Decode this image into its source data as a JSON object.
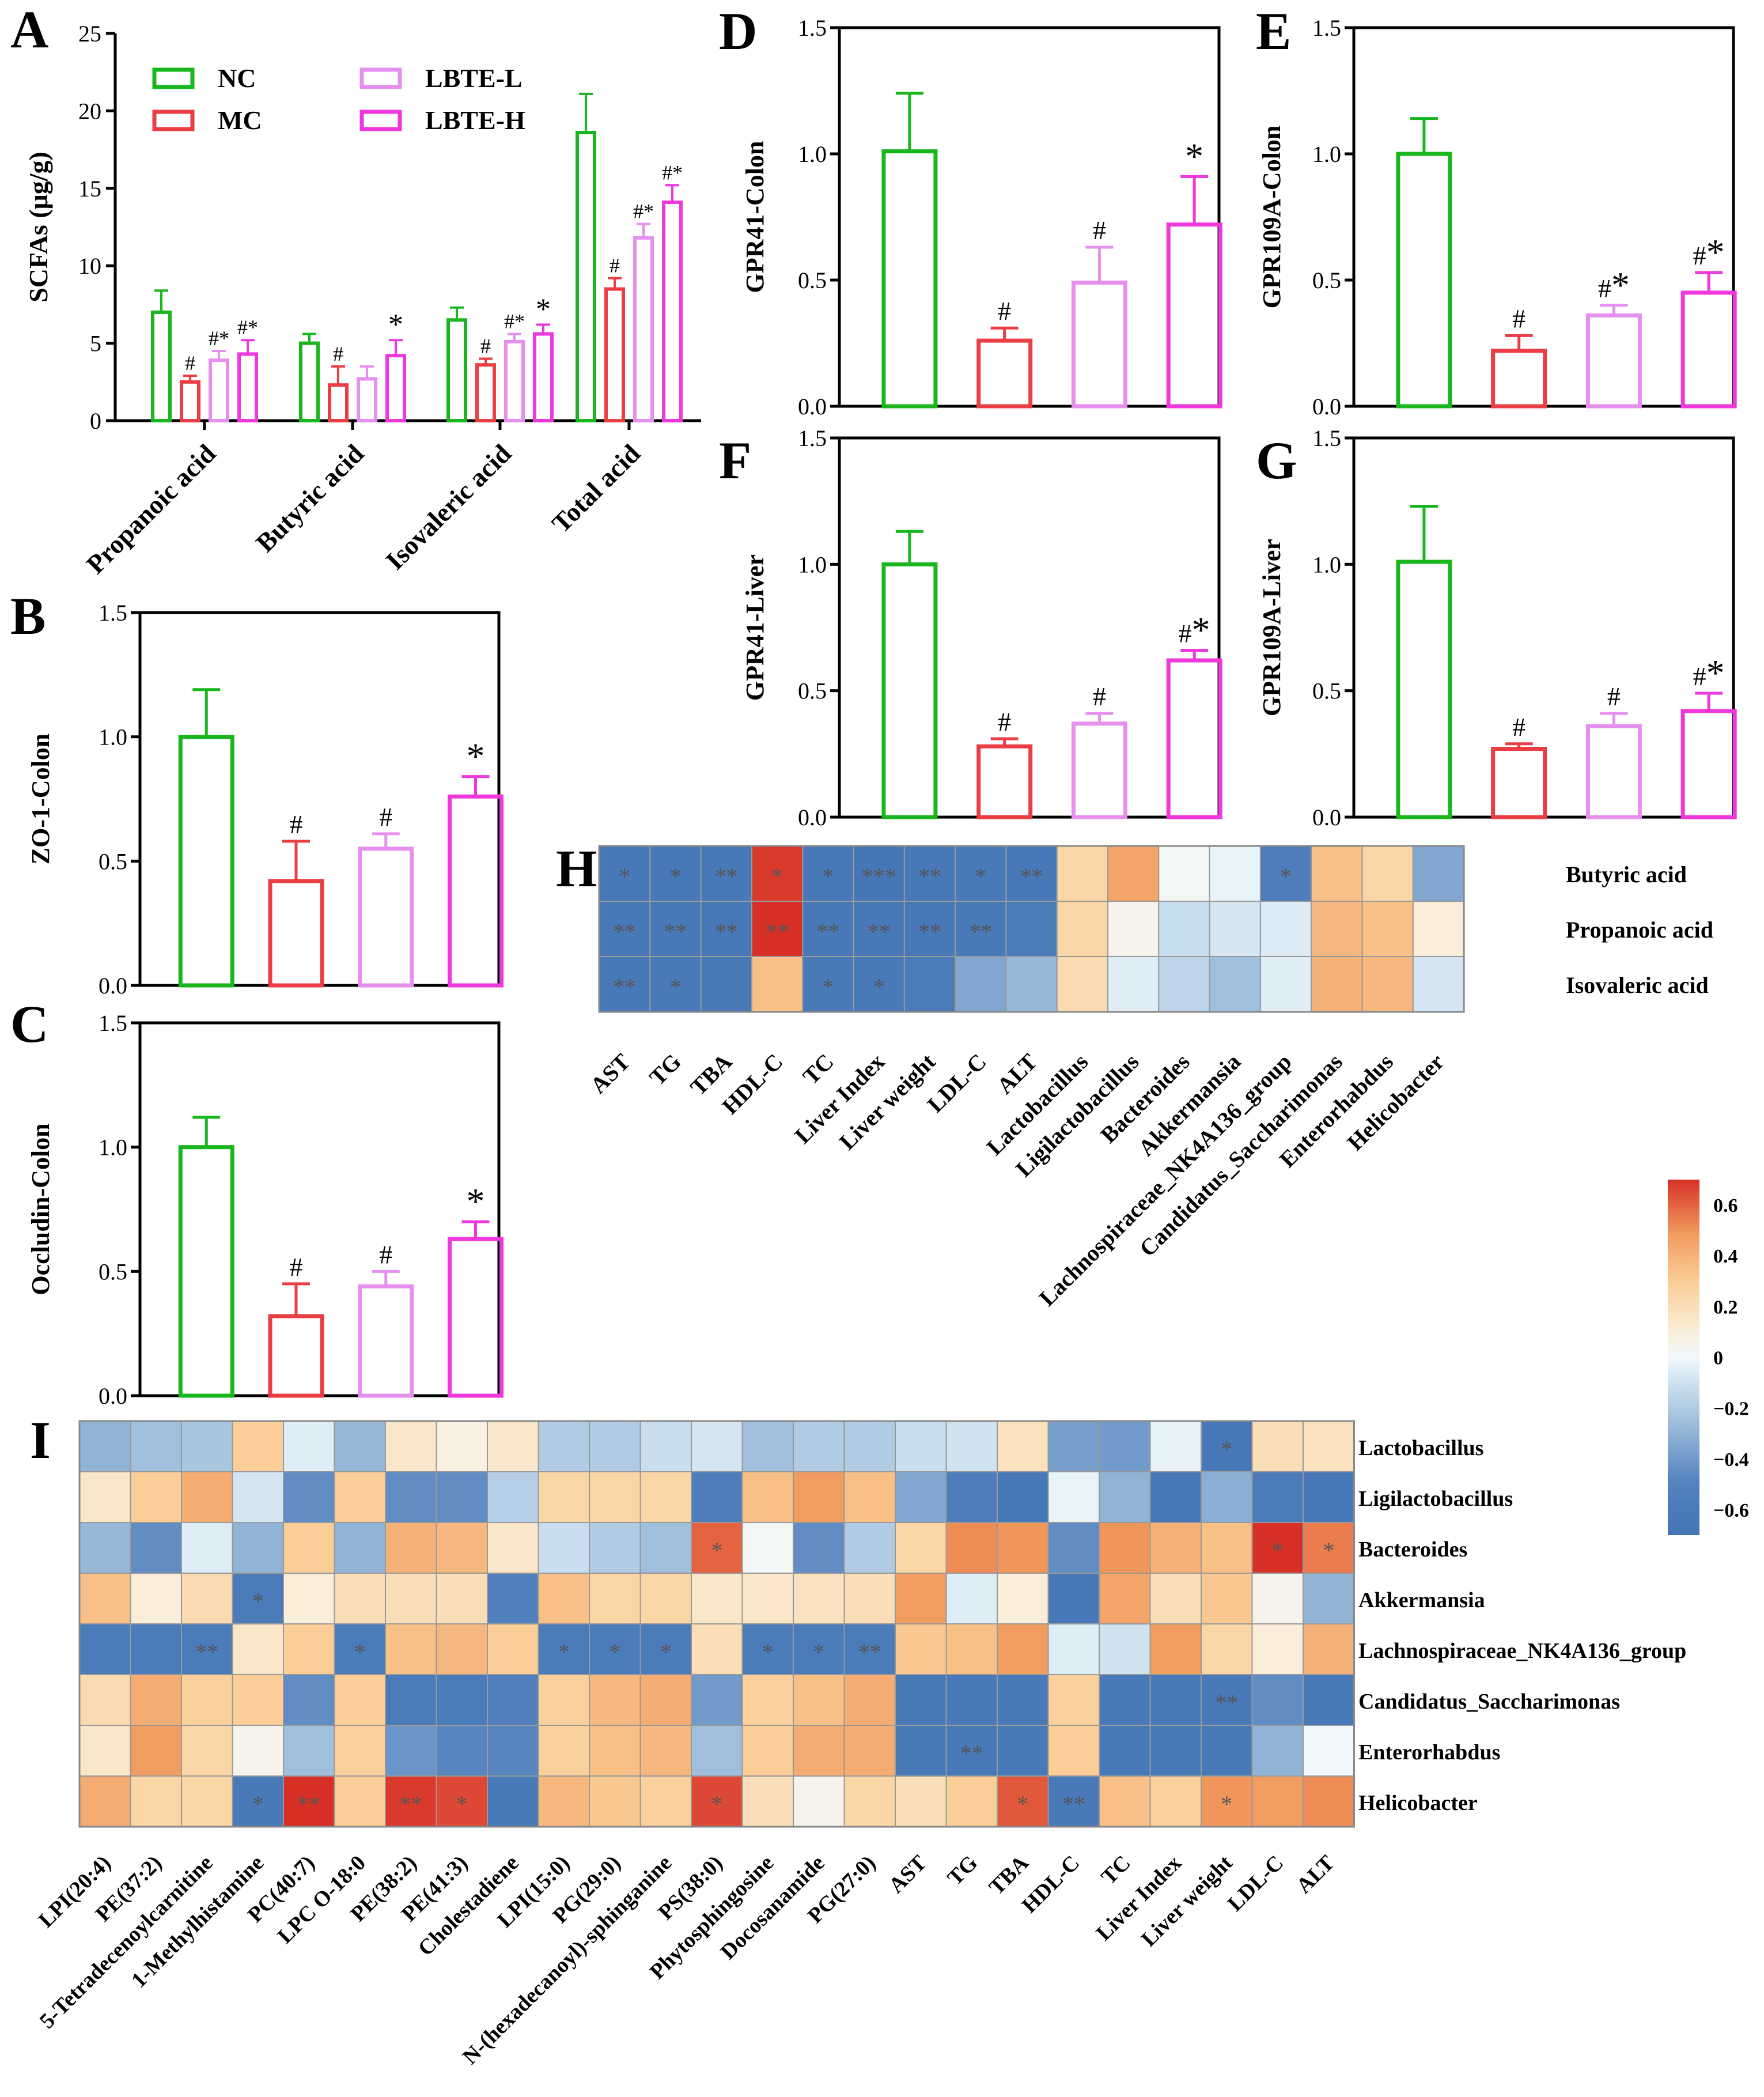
{
  "colors": {
    "NC": "#19b61e",
    "MC": "#ea3e44",
    "LBTE-L": "#e590ee",
    "LBTE-H": "#ee38de"
  },
  "chart_data": [
    {
      "panel": "A",
      "type": "bar",
      "ylabel": "SCFAs (μg/g)",
      "ylim": [
        0,
        25
      ],
      "yticks": [
        0,
        5,
        10,
        15,
        20,
        25
      ],
      "categories": [
        "Propanoic acid",
        "Butyric acid",
        "Isovaleric acid",
        "Total acid"
      ],
      "legend": [
        "NC",
        "MC",
        "LBTE-L",
        "LBTE-H"
      ],
      "series": [
        {
          "name": "NC",
          "values": [
            7.0,
            5.0,
            6.5,
            18.6
          ],
          "err": [
            1.4,
            0.6,
            0.8,
            2.5
          ],
          "marks": [
            "",
            "",
            "",
            ""
          ]
        },
        {
          "name": "MC",
          "values": [
            2.5,
            2.3,
            3.6,
            8.5
          ],
          "err": [
            0.4,
            1.2,
            0.4,
            0.7
          ],
          "marks": [
            "#",
            "#",
            "#",
            "#"
          ]
        },
        {
          "name": "LBTE-L",
          "values": [
            3.9,
            2.7,
            5.1,
            11.8
          ],
          "err": [
            0.6,
            0.8,
            0.5,
            0.9
          ],
          "marks": [
            "#*",
            "",
            "#*",
            "#*"
          ]
        },
        {
          "name": "LBTE-H",
          "values": [
            4.3,
            4.2,
            5.6,
            14.1
          ],
          "err": [
            0.9,
            1.0,
            0.6,
            1.1
          ],
          "marks": [
            "#*",
            "*",
            "*",
            "#*"
          ]
        }
      ]
    },
    {
      "panel": "B",
      "type": "bar",
      "ylabel": "ZO-1-Colon",
      "ylim": [
        0,
        1.5
      ],
      "yticks": [
        "0.0",
        "0.5",
        "1.0",
        "1.5"
      ],
      "groups": [
        "NC",
        "MC",
        "LBTE-L",
        "LBTE-H"
      ],
      "values": [
        1.0,
        0.42,
        0.55,
        0.76
      ],
      "err": [
        0.19,
        0.16,
        0.06,
        0.08
      ],
      "marks": [
        "",
        "#",
        "#",
        "*"
      ]
    },
    {
      "panel": "C",
      "type": "bar",
      "ylabel": "Occludin-Colon",
      "ylim": [
        0,
        1.5
      ],
      "yticks": [
        "0.0",
        "0.5",
        "1.0",
        "1.5"
      ],
      "groups": [
        "NC",
        "MC",
        "LBTE-L",
        "LBTE-H"
      ],
      "values": [
        1.0,
        0.32,
        0.44,
        0.63
      ],
      "err": [
        0.12,
        0.13,
        0.06,
        0.07
      ],
      "marks": [
        "",
        "#",
        "#",
        "*"
      ]
    },
    {
      "panel": "D",
      "type": "bar",
      "ylabel": "GPR41-Colon",
      "ylim": [
        0,
        1.5
      ],
      "yticks": [
        "0.0",
        "0.5",
        "1.0",
        "1.5"
      ],
      "groups": [
        "NC",
        "MC",
        "LBTE-L",
        "LBTE-H"
      ],
      "values": [
        1.01,
        0.26,
        0.49,
        0.72
      ],
      "err": [
        0.23,
        0.05,
        0.14,
        0.19
      ],
      "marks": [
        "",
        "#",
        "#",
        "*"
      ]
    },
    {
      "panel": "E",
      "type": "bar",
      "ylabel": "GPR109A-Colon",
      "ylim": [
        0,
        1.5
      ],
      "yticks": [
        "0.0",
        "0.5",
        "1.0",
        "1.5"
      ],
      "groups": [
        "NC",
        "MC",
        "LBTE-L",
        "LBTE-H"
      ],
      "values": [
        1.0,
        0.22,
        0.36,
        0.45
      ],
      "err": [
        0.14,
        0.06,
        0.04,
        0.08
      ],
      "marks": [
        "",
        "#",
        "#*",
        "#*"
      ]
    },
    {
      "panel": "F",
      "type": "bar",
      "ylabel": "GPR41-Liver",
      "ylim": [
        0,
        1.5
      ],
      "yticks": [
        "0.0",
        "0.5",
        "1.0",
        "1.5"
      ],
      "groups": [
        "NC",
        "MC",
        "LBTE-L",
        "LBTE-H"
      ],
      "values": [
        1.0,
        0.28,
        0.37,
        0.62
      ],
      "err": [
        0.13,
        0.03,
        0.04,
        0.04
      ],
      "marks": [
        "",
        "#",
        "#",
        "#*"
      ]
    },
    {
      "panel": "G",
      "type": "bar",
      "ylabel": "GPR109A-Liver",
      "ylim": [
        0,
        1.5
      ],
      "yticks": [
        "0.0",
        "0.5",
        "1.0",
        "1.5"
      ],
      "groups": [
        "NC",
        "MC",
        "LBTE-L",
        "LBTE-H"
      ],
      "values": [
        1.01,
        0.27,
        0.36,
        0.42
      ],
      "err": [
        0.22,
        0.02,
        0.05,
        0.07
      ],
      "marks": [
        "",
        "#",
        "#",
        "#*"
      ]
    },
    {
      "panel": "H",
      "type": "heatmap",
      "colorbar": {
        "min": -0.7,
        "max": 0.7,
        "ticks": [
          "0.6",
          "0.4",
          "0.2",
          "0",
          "−0.2",
          "−0.4",
          "−0.6"
        ]
      },
      "rows": [
        "Butyric acid",
        "Propanoic acid",
        "Isovaleric acid"
      ],
      "cols": [
        "AST",
        "TG",
        "TBA",
        "HDL-C",
        "TC",
        "Liver Index",
        "Liver weight",
        "LDL-C",
        "ALT",
        "Lactobacillus",
        "Ligilactobacillus",
        "Bacteroides",
        "Akkermansia",
        "Lachnospiraceae_NK4A136_group",
        "Candidatus_Saccharimonas",
        "Enterorhabdus",
        "Helicobacter"
      ],
      "values": [
        [
          -0.65,
          -0.65,
          -0.65,
          0.68,
          -0.65,
          -0.68,
          -0.65,
          -0.62,
          -0.65,
          0.25,
          0.45,
          0.02,
          -0.02,
          -0.55,
          0.35,
          0.25,
          -0.35
        ],
        [
          -0.65,
          -0.65,
          -0.65,
          0.7,
          -0.65,
          -0.65,
          -0.65,
          -0.62,
          -0.6,
          0.25,
          0.05,
          -0.12,
          -0.08,
          -0.06,
          0.38,
          0.35,
          0.1
        ],
        [
          -0.65,
          -0.62,
          -0.62,
          0.35,
          -0.62,
          -0.62,
          -0.6,
          -0.35,
          -0.28,
          0.22,
          -0.05,
          -0.15,
          -0.25,
          -0.05,
          0.4,
          0.38,
          -0.08
        ]
      ],
      "sig": [
        [
          "*",
          "*",
          "**",
          "*",
          "*",
          "***",
          "**",
          "*",
          "**",
          "",
          "",
          "",
          "",
          "*",
          "",
          "",
          ""
        ],
        [
          "**",
          "**",
          "**",
          "**",
          "**",
          "**",
          "**",
          "**",
          "",
          "",
          "",
          "",
          "",
          "",
          "",
          "",
          ""
        ],
        [
          "**",
          "*",
          "",
          "",
          "*",
          "*",
          "",
          "",
          "",
          "",
          "",
          "",
          "",
          "",
          "",
          "",
          ""
        ]
      ]
    },
    {
      "panel": "I",
      "type": "heatmap",
      "rows": [
        "Lactobacillus",
        "Ligilactobacillus",
        "Bacteroides",
        "Akkermansia",
        "Lachnospiraceae_NK4A136_group",
        "Candidatus_Saccharimonas",
        "Enterorhabdus",
        "Helicobacter"
      ],
      "cols": [
        "LPI(20:4)",
        "PE(37:2)",
        "5-Tetradecenoylcarnitine",
        "1-Methylhistamine",
        "PC(40:7)",
        "LPC O-18:0",
        "PE(38:2)",
        "PE(41:3)",
        "Cholestadiene",
        "LPI(15:0)",
        "PG(29:0)",
        "N-(hexadecanoyl)-sphinganine",
        "PS(38:0)",
        "Phytosphingosine",
        "Docosanamide",
        "PG(27:0)",
        "AST",
        "TG",
        "TBA",
        "HDL-C",
        "TC",
        "Liver Index",
        "Liver weight",
        "LDL-C",
        "ALT"
      ],
      "values": [
        [
          -0.3,
          -0.25,
          -0.22,
          0.3,
          -0.05,
          -0.28,
          0.15,
          0.08,
          0.15,
          -0.2,
          -0.2,
          -0.12,
          -0.08,
          -0.25,
          -0.2,
          -0.2,
          -0.12,
          -0.1,
          0.18,
          -0.38,
          -0.4,
          -0.03,
          -0.65,
          0.2,
          0.18
        ],
        [
          0.15,
          0.3,
          0.42,
          -0.08,
          -0.45,
          0.3,
          -0.45,
          -0.45,
          -0.18,
          0.25,
          0.25,
          0.25,
          -0.55,
          0.35,
          0.48,
          0.35,
          -0.35,
          -0.55,
          -0.65,
          -0.02,
          -0.3,
          -0.65,
          -0.32,
          -0.6,
          -0.65
        ],
        [
          -0.28,
          -0.45,
          -0.05,
          -0.3,
          0.3,
          -0.3,
          0.4,
          0.38,
          0.15,
          -0.12,
          -0.2,
          -0.25,
          0.6,
          0.02,
          -0.45,
          -0.2,
          0.25,
          0.52,
          0.5,
          -0.45,
          0.5,
          0.4,
          0.35,
          0.7,
          0.55
        ],
        [
          0.35,
          0.1,
          0.22,
          -0.6,
          0.1,
          0.2,
          0.2,
          0.2,
          -0.5,
          0.35,
          0.25,
          0.25,
          0.15,
          0.15,
          0.18,
          0.2,
          0.48,
          -0.05,
          0.1,
          -0.65,
          0.45,
          0.2,
          0.32,
          0.05,
          -0.3
        ],
        [
          -0.6,
          -0.6,
          -0.6,
          0.15,
          0.3,
          -0.6,
          0.35,
          0.38,
          0.3,
          -0.6,
          -0.6,
          -0.6,
          0.2,
          -0.6,
          -0.6,
          -0.6,
          0.32,
          0.35,
          0.48,
          -0.05,
          -0.1,
          0.48,
          0.25,
          0.1,
          0.4
        ],
        [
          0.22,
          0.42,
          0.28,
          0.3,
          -0.45,
          0.3,
          -0.6,
          -0.6,
          -0.5,
          0.28,
          0.38,
          0.42,
          -0.4,
          0.28,
          0.35,
          0.42,
          -0.62,
          -0.62,
          -0.62,
          0.28,
          -0.62,
          -0.62,
          -0.62,
          -0.45,
          -0.62
        ],
        [
          0.15,
          0.48,
          0.25,
          0.05,
          -0.25,
          0.28,
          -0.42,
          -0.48,
          -0.48,
          0.28,
          0.35,
          0.38,
          -0.25,
          0.3,
          0.42,
          0.42,
          -0.62,
          -0.62,
          -0.62,
          0.3,
          -0.62,
          -0.62,
          -0.62,
          -0.3,
          0.0
        ],
        [
          0.42,
          0.25,
          0.25,
          -0.62,
          0.72,
          0.3,
          0.68,
          0.65,
          -0.62,
          0.38,
          0.32,
          0.28,
          0.65,
          0.2,
          0.05,
          0.25,
          0.2,
          0.3,
          0.62,
          -0.62,
          0.35,
          0.28,
          0.5,
          0.48,
          0.52
        ]
      ],
      "sig": [
        [
          "",
          "",
          "",
          "",
          "",
          "",
          "",
          "",
          "",
          "",
          "",
          "",
          "",
          "",
          "",
          "",
          "",
          "",
          "",
          "",
          "",
          "",
          "*",
          "",
          ""
        ],
        [
          "",
          "",
          "",
          "",
          "",
          "",
          "",
          "",
          "",
          "",
          "",
          "",
          "",
          "",
          "",
          "",
          "",
          "",
          "",
          "",
          "",
          "",
          "",
          "",
          ""
        ],
        [
          "",
          "",
          "",
          "",
          "",
          "",
          "",
          "",
          "",
          "",
          "",
          "",
          "*",
          "",
          "",
          "",
          "",
          "",
          "",
          "",
          "",
          "",
          "",
          "*",
          "*"
        ],
        [
          "",
          "",
          "",
          "*",
          "",
          "",
          "",
          "",
          "",
          "",
          "",
          "",
          "",
          "",
          "",
          "",
          "",
          "",
          "",
          "",
          "",
          "",
          "",
          "",
          ""
        ],
        [
          "",
          "",
          "**",
          "",
          "",
          "*",
          "",
          "",
          "",
          "*",
          "*",
          "*",
          "",
          "*",
          "*",
          "**",
          "",
          "",
          "",
          "",
          "",
          "",
          "",
          "",
          ""
        ],
        [
          "",
          "",
          "",
          "",
          "",
          "",
          "",
          "",
          "",
          "",
          "",
          "",
          "",
          "",
          "",
          "",
          "",
          "",
          "",
          "",
          "",
          "",
          "**",
          "",
          ""
        ],
        [
          "",
          "",
          "",
          "",
          "",
          "",
          "",
          "",
          "",
          "",
          "",
          "",
          "",
          "",
          "",
          "",
          "",
          "**",
          "",
          "",
          "",
          "",
          "",
          "",
          ""
        ],
        [
          "",
          "",
          "",
          "*",
          "**",
          "",
          "**",
          "*",
          "",
          "",
          "",
          "",
          "*",
          "",
          "",
          "",
          "",
          "",
          "*",
          "**",
          "",
          "",
          "*",
          "",
          ""
        ]
      ]
    }
  ]
}
